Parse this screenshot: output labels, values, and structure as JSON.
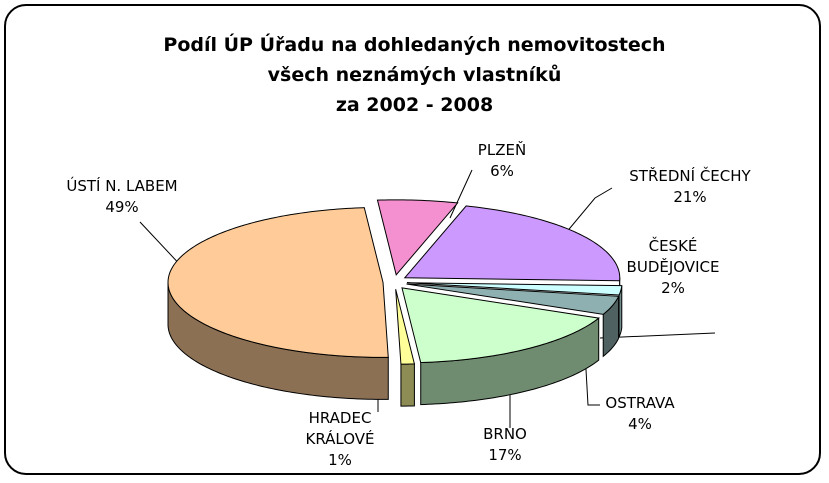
{
  "chart_data": {
    "type": "pie3d",
    "title": "Podíl ÚP Úřadu na dohledaných nemovitostech\nvšech neznámých vlastníků\nza 2002 - 2008",
    "categories": [
      "PLZEŇ",
      "STŘEDNÍ ČECHY",
      "ČESKÉ BUDĚJOVICE",
      "OSTRAVA",
      "BRNO",
      "HRADEC KRÁLOVÉ",
      "ÚSTÍ N. LABEM"
    ],
    "values": [
      6,
      21,
      2,
      4,
      17,
      1,
      49
    ],
    "value_labels": [
      "6%",
      "21%",
      "2%",
      "4%",
      "17%",
      "1%",
      "49%"
    ],
    "colors": [
      "#f590d0",
      "#cc99ff",
      "#ccffff",
      "#8fb0b0",
      "#ccffcc",
      "#ffff99",
      "#ffcc99"
    ]
  }
}
